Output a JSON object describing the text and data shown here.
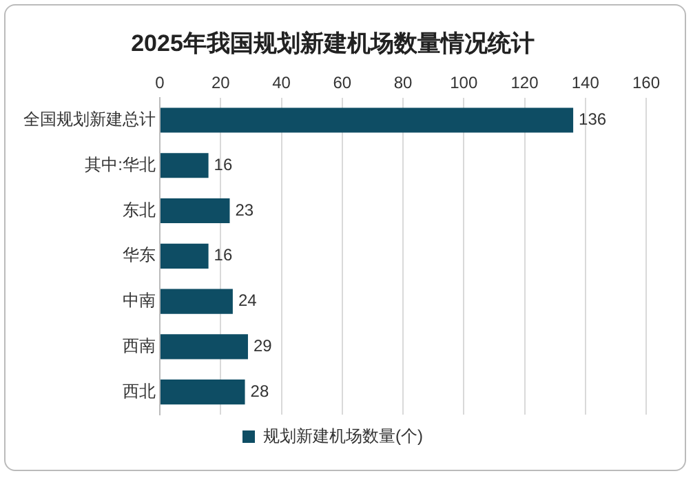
{
  "chart_data": {
    "type": "bar",
    "orientation": "horizontal",
    "title": "2025年我国规划新建机场数量情况统计",
    "categories": [
      "全国规划新建总计",
      "其中:华北",
      "东北",
      "华东",
      "中南",
      "西南",
      "西北"
    ],
    "series": [
      {
        "name": "规划新建机场数量(个)",
        "color": "#0e4d64",
        "values": [
          136,
          16,
          23,
          16,
          24,
          29,
          28
        ]
      }
    ],
    "xlim": [
      0,
      160
    ],
    "xticks": [
      0,
      20,
      40,
      60,
      80,
      100,
      120,
      140,
      160
    ],
    "grid": "x",
    "legend": "bottom",
    "data_labels": true
  }
}
